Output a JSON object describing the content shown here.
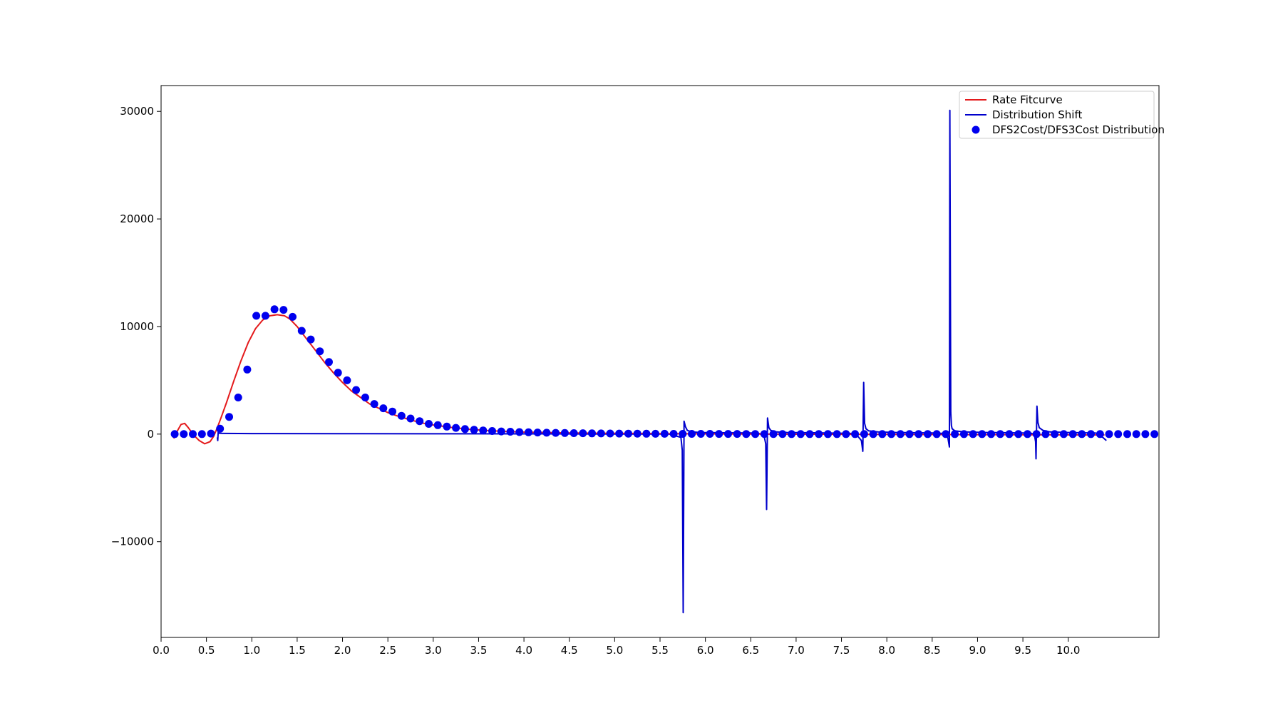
{
  "chart_data": {
    "type": "line",
    "title": "",
    "xlabel": "",
    "ylabel": "",
    "xlim": [
      0.0,
      11.0
    ],
    "ylim": [
      -18900,
      32400
    ],
    "grid": false,
    "legend_position": "top-right",
    "x_ticks": [
      {
        "value": 0.0,
        "label": "0.0"
      },
      {
        "value": 0.5,
        "label": "0.5"
      },
      {
        "value": 1.0,
        "label": "1.0"
      },
      {
        "value": 1.5,
        "label": "1.5"
      },
      {
        "value": 2.0,
        "label": "2.0"
      },
      {
        "value": 2.5,
        "label": "2.5"
      },
      {
        "value": 3.0,
        "label": "3.0"
      },
      {
        "value": 3.5,
        "label": "3.5"
      },
      {
        "value": 4.0,
        "label": "4.0"
      },
      {
        "value": 4.5,
        "label": "4.5"
      },
      {
        "value": 5.0,
        "label": "5.0"
      },
      {
        "value": 5.5,
        "label": "5.5"
      },
      {
        "value": 6.0,
        "label": "6.0"
      },
      {
        "value": 6.5,
        "label": "6.5"
      },
      {
        "value": 7.0,
        "label": "7.0"
      },
      {
        "value": 7.5,
        "label": "7.5"
      },
      {
        "value": 8.0,
        "label": "8.0"
      },
      {
        "value": 8.5,
        "label": "8.5"
      },
      {
        "value": 9.0,
        "label": "9.0"
      },
      {
        "value": 9.5,
        "label": "9.5"
      },
      {
        "value": 10.0,
        "label": "10.0"
      }
    ],
    "y_ticks": [
      {
        "value": -10000,
        "label": "−10000"
      },
      {
        "value": 0,
        "label": "0"
      },
      {
        "value": 10000,
        "label": "10000"
      },
      {
        "value": 20000,
        "label": "20000"
      },
      {
        "value": 30000,
        "label": "30000"
      }
    ],
    "series": [
      {
        "name": "Rate Fitcurve",
        "kind": "line",
        "color": "#e41a1c",
        "x": [
          0.14,
          0.18,
          0.22,
          0.26,
          0.3,
          0.36,
          0.42,
          0.48,
          0.54,
          0.58,
          0.62,
          0.66,
          0.72,
          0.8,
          0.88,
          0.96,
          1.04,
          1.12,
          1.2,
          1.28,
          1.36,
          1.42,
          1.5,
          1.6,
          1.7,
          1.8,
          1.9,
          2.0,
          2.1,
          2.2,
          2.3,
          2.4,
          2.5,
          2.6,
          2.7,
          2.8,
          2.9,
          3.0,
          3.2,
          3.4,
          3.6,
          3.8,
          4.0,
          4.4,
          4.8,
          5.2,
          5.6,
          6.0,
          6.5,
          7.0,
          7.5,
          8.0,
          8.5,
          9.0,
          9.5,
          10.0,
          10.4
        ],
        "y": [
          -400,
          300,
          900,
          1000,
          600,
          -100,
          -600,
          -900,
          -700,
          -200,
          600,
          1500,
          2900,
          4900,
          6800,
          8500,
          9800,
          10600,
          11000,
          11100,
          11000,
          10700,
          10000,
          8900,
          7800,
          6700,
          5700,
          4800,
          4000,
          3400,
          2800,
          2400,
          2000,
          1700,
          1450,
          1200,
          1000,
          850,
          620,
          450,
          330,
          250,
          190,
          120,
          80,
          60,
          40,
          20,
          0,
          -10,
          -20,
          -30,
          -40,
          -50,
          -60,
          -70,
          -80
        ]
      },
      {
        "name": "Distribution Shift",
        "kind": "line",
        "color": "#0000cc",
        "x": [
          0.62,
          0.625,
          0.63,
          0.64,
          0.66,
          0.7,
          1.0,
          2.0,
          3.0,
          4.0,
          5.0,
          5.6,
          5.73,
          5.745,
          5.755,
          5.765,
          5.78,
          5.8,
          5.85,
          5.95,
          6.2,
          6.5,
          6.6,
          6.65,
          6.665,
          6.675,
          6.685,
          6.7,
          6.72,
          6.78,
          6.9,
          7.2,
          7.6,
          7.68,
          7.72,
          7.735,
          7.745,
          7.755,
          7.77,
          7.8,
          7.9,
          8.1,
          8.5,
          8.62,
          8.67,
          8.69,
          8.695,
          8.705,
          8.712,
          8.72,
          8.75,
          8.85,
          9.1,
          9.5,
          9.6,
          9.63,
          9.64,
          9.645,
          9.655,
          9.665,
          9.68,
          9.72,
          9.8,
          10.0,
          10.3,
          10.38,
          10.42
        ],
        "y": [
          -300,
          -600,
          300,
          80,
          70,
          60,
          50,
          40,
          30,
          20,
          10,
          5,
          -300,
          -1500,
          -16600,
          1200,
          700,
          350,
          200,
          150,
          120,
          100,
          50,
          -300,
          -900,
          -7000,
          1500,
          600,
          350,
          200,
          150,
          120,
          60,
          -200,
          -600,
          -1600,
          4800,
          1000,
          500,
          300,
          200,
          150,
          100,
          60,
          -200,
          -1200,
          30100,
          2000,
          800,
          500,
          300,
          200,
          150,
          100,
          60,
          -200,
          -700,
          -2300,
          2600,
          1100,
          600,
          350,
          200,
          150,
          100,
          -300,
          -600
        ]
      },
      {
        "name": "DFS2Cost/DFS3Cost Distribution",
        "kind": "scatter",
        "color": "#0000ee",
        "x": [
          0.15,
          0.25,
          0.35,
          0.45,
          0.55,
          0.65,
          0.75,
          0.85,
          0.95,
          1.05,
          1.15,
          1.25,
          1.35,
          1.45,
          1.55,
          1.65,
          1.75,
          1.85,
          1.95,
          2.05,
          2.15,
          2.25,
          2.35,
          2.45,
          2.55,
          2.65,
          2.75,
          2.85,
          2.95,
          3.05,
          3.15,
          3.25,
          3.35,
          3.45,
          3.55,
          3.65,
          3.75,
          3.85,
          3.95,
          4.05,
          4.15,
          4.25,
          4.35,
          4.45,
          4.55,
          4.65,
          4.75,
          4.85,
          4.95,
          5.05,
          5.15,
          5.25,
          5.35,
          5.45,
          5.55,
          5.65,
          5.75,
          5.85,
          5.95,
          6.05,
          6.15,
          6.25,
          6.35,
          6.45,
          6.55,
          6.65,
          6.75,
          6.85,
          6.95,
          7.05,
          7.15,
          7.25,
          7.35,
          7.45,
          7.55,
          7.65,
          7.75,
          7.85,
          7.95,
          8.05,
          8.15,
          8.25,
          8.35,
          8.45,
          8.55,
          8.65,
          8.75,
          8.85,
          8.95,
          9.05,
          9.15,
          9.25,
          9.35,
          9.45,
          9.55,
          9.65,
          9.75,
          9.85,
          9.95,
          10.05,
          10.15,
          10.25,
          10.35,
          10.45,
          10.55,
          10.65,
          10.75,
          10.85,
          10.95
        ],
        "y": [
          0,
          0,
          0,
          0,
          50,
          500,
          1600,
          3400,
          6000,
          11000,
          11000,
          11600,
          11550,
          10900,
          9600,
          8800,
          7700,
          6700,
          5700,
          5000,
          4100,
          3400,
          2800,
          2400,
          2100,
          1700,
          1450,
          1200,
          950,
          830,
          700,
          580,
          470,
          400,
          340,
          290,
          250,
          220,
          190,
          170,
          150,
          130,
          115,
          100,
          90,
          80,
          70,
          60,
          55,
          50,
          45,
          40,
          35,
          30,
          30,
          25,
          25,
          20,
          20,
          20,
          15,
          15,
          15,
          10,
          10,
          10,
          10,
          10,
          5,
          5,
          5,
          5,
          5,
          5,
          5,
          5,
          0,
          0,
          0,
          0,
          0,
          0,
          0,
          0,
          0,
          0,
          0,
          0,
          0,
          0,
          0,
          0,
          0,
          0,
          0,
          0,
          0,
          0,
          0,
          0,
          0,
          0,
          0,
          0,
          0,
          0,
          0,
          0,
          0
        ]
      }
    ]
  }
}
